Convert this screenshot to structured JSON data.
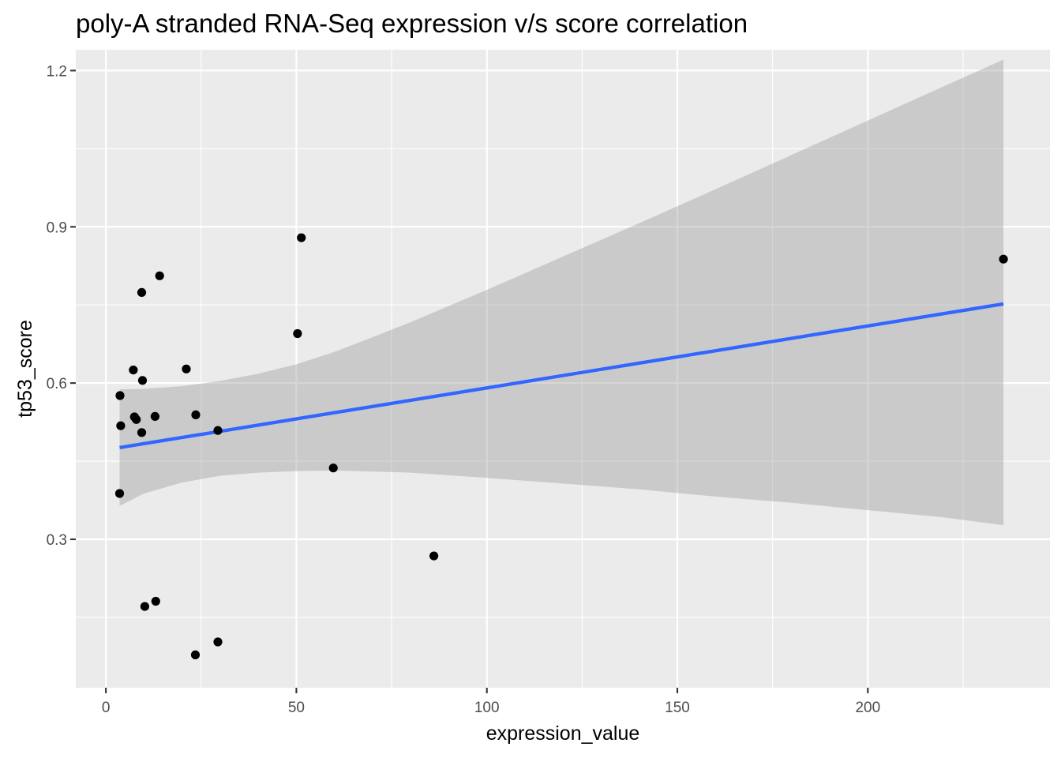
{
  "chart_data": {
    "type": "scatter",
    "title": "poly-A stranded RNA-Seq expression v/s score correlation",
    "xlabel": "expression_value",
    "ylabel": "tp53_score",
    "xlim": [
      -7.9,
      247.8
    ],
    "ylim": [
      0.015,
      1.24
    ],
    "x_ticks": [
      0,
      50,
      100,
      150,
      200
    ],
    "x_tick_labels": [
      "0",
      "50",
      "100",
      "150",
      "200"
    ],
    "x_minor_ticks": [
      25,
      75,
      125,
      175,
      225
    ],
    "y_ticks": [
      0.3,
      0.6,
      0.9,
      1.2
    ],
    "y_tick_labels": [
      "0.3",
      "0.6",
      "0.9",
      "1.2"
    ],
    "y_minor_ticks": [
      0.15,
      0.45,
      0.75,
      1.05
    ],
    "grid": true,
    "legend": "none",
    "points": [
      {
        "x": 3.7,
        "y": 0.576
      },
      {
        "x": 3.9,
        "y": 0.518
      },
      {
        "x": 3.6,
        "y": 0.388
      },
      {
        "x": 7.2,
        "y": 0.625
      },
      {
        "x": 7.5,
        "y": 0.535
      },
      {
        "x": 8.0,
        "y": 0.53
      },
      {
        "x": 9.4,
        "y": 0.774
      },
      {
        "x": 9.6,
        "y": 0.605
      },
      {
        "x": 9.4,
        "y": 0.505
      },
      {
        "x": 10.2,
        "y": 0.171
      },
      {
        "x": 12.9,
        "y": 0.536
      },
      {
        "x": 13.1,
        "y": 0.181
      },
      {
        "x": 14.1,
        "y": 0.806
      },
      {
        "x": 21.1,
        "y": 0.627
      },
      {
        "x": 23.6,
        "y": 0.539
      },
      {
        "x": 23.5,
        "y": 0.078
      },
      {
        "x": 29.4,
        "y": 0.509
      },
      {
        "x": 29.4,
        "y": 0.103
      },
      {
        "x": 50.3,
        "y": 0.695
      },
      {
        "x": 51.3,
        "y": 0.879
      },
      {
        "x": 59.7,
        "y": 0.437
      },
      {
        "x": 86.1,
        "y": 0.268
      },
      {
        "x": 235.6,
        "y": 0.838
      }
    ],
    "fit_line": {
      "x": [
        3.6,
        235.6
      ],
      "y": [
        0.476,
        0.752
      ]
    },
    "confidence_band": {
      "x": [
        3.6,
        10,
        20,
        30,
        40,
        50,
        60,
        70,
        80,
        100,
        120,
        140,
        160,
        180,
        200,
        220,
        235.6
      ],
      "upper": [
        0.588,
        0.589,
        0.594,
        0.604,
        0.618,
        0.636,
        0.66,
        0.688,
        0.717,
        0.779,
        0.843,
        0.907,
        0.972,
        1.038,
        1.104,
        1.17,
        1.221
      ],
      "lower": [
        0.364,
        0.388,
        0.409,
        0.422,
        0.428,
        0.431,
        0.432,
        0.43,
        0.428,
        0.418,
        0.407,
        0.396,
        0.382,
        0.37,
        0.356,
        0.342,
        0.327
      ]
    },
    "colors": {
      "panel_background": "#ebebeb",
      "grid_major": "#ffffff",
      "points": "#000000",
      "fit_line": "#3366ff",
      "confidence_band": "#999999"
    }
  }
}
